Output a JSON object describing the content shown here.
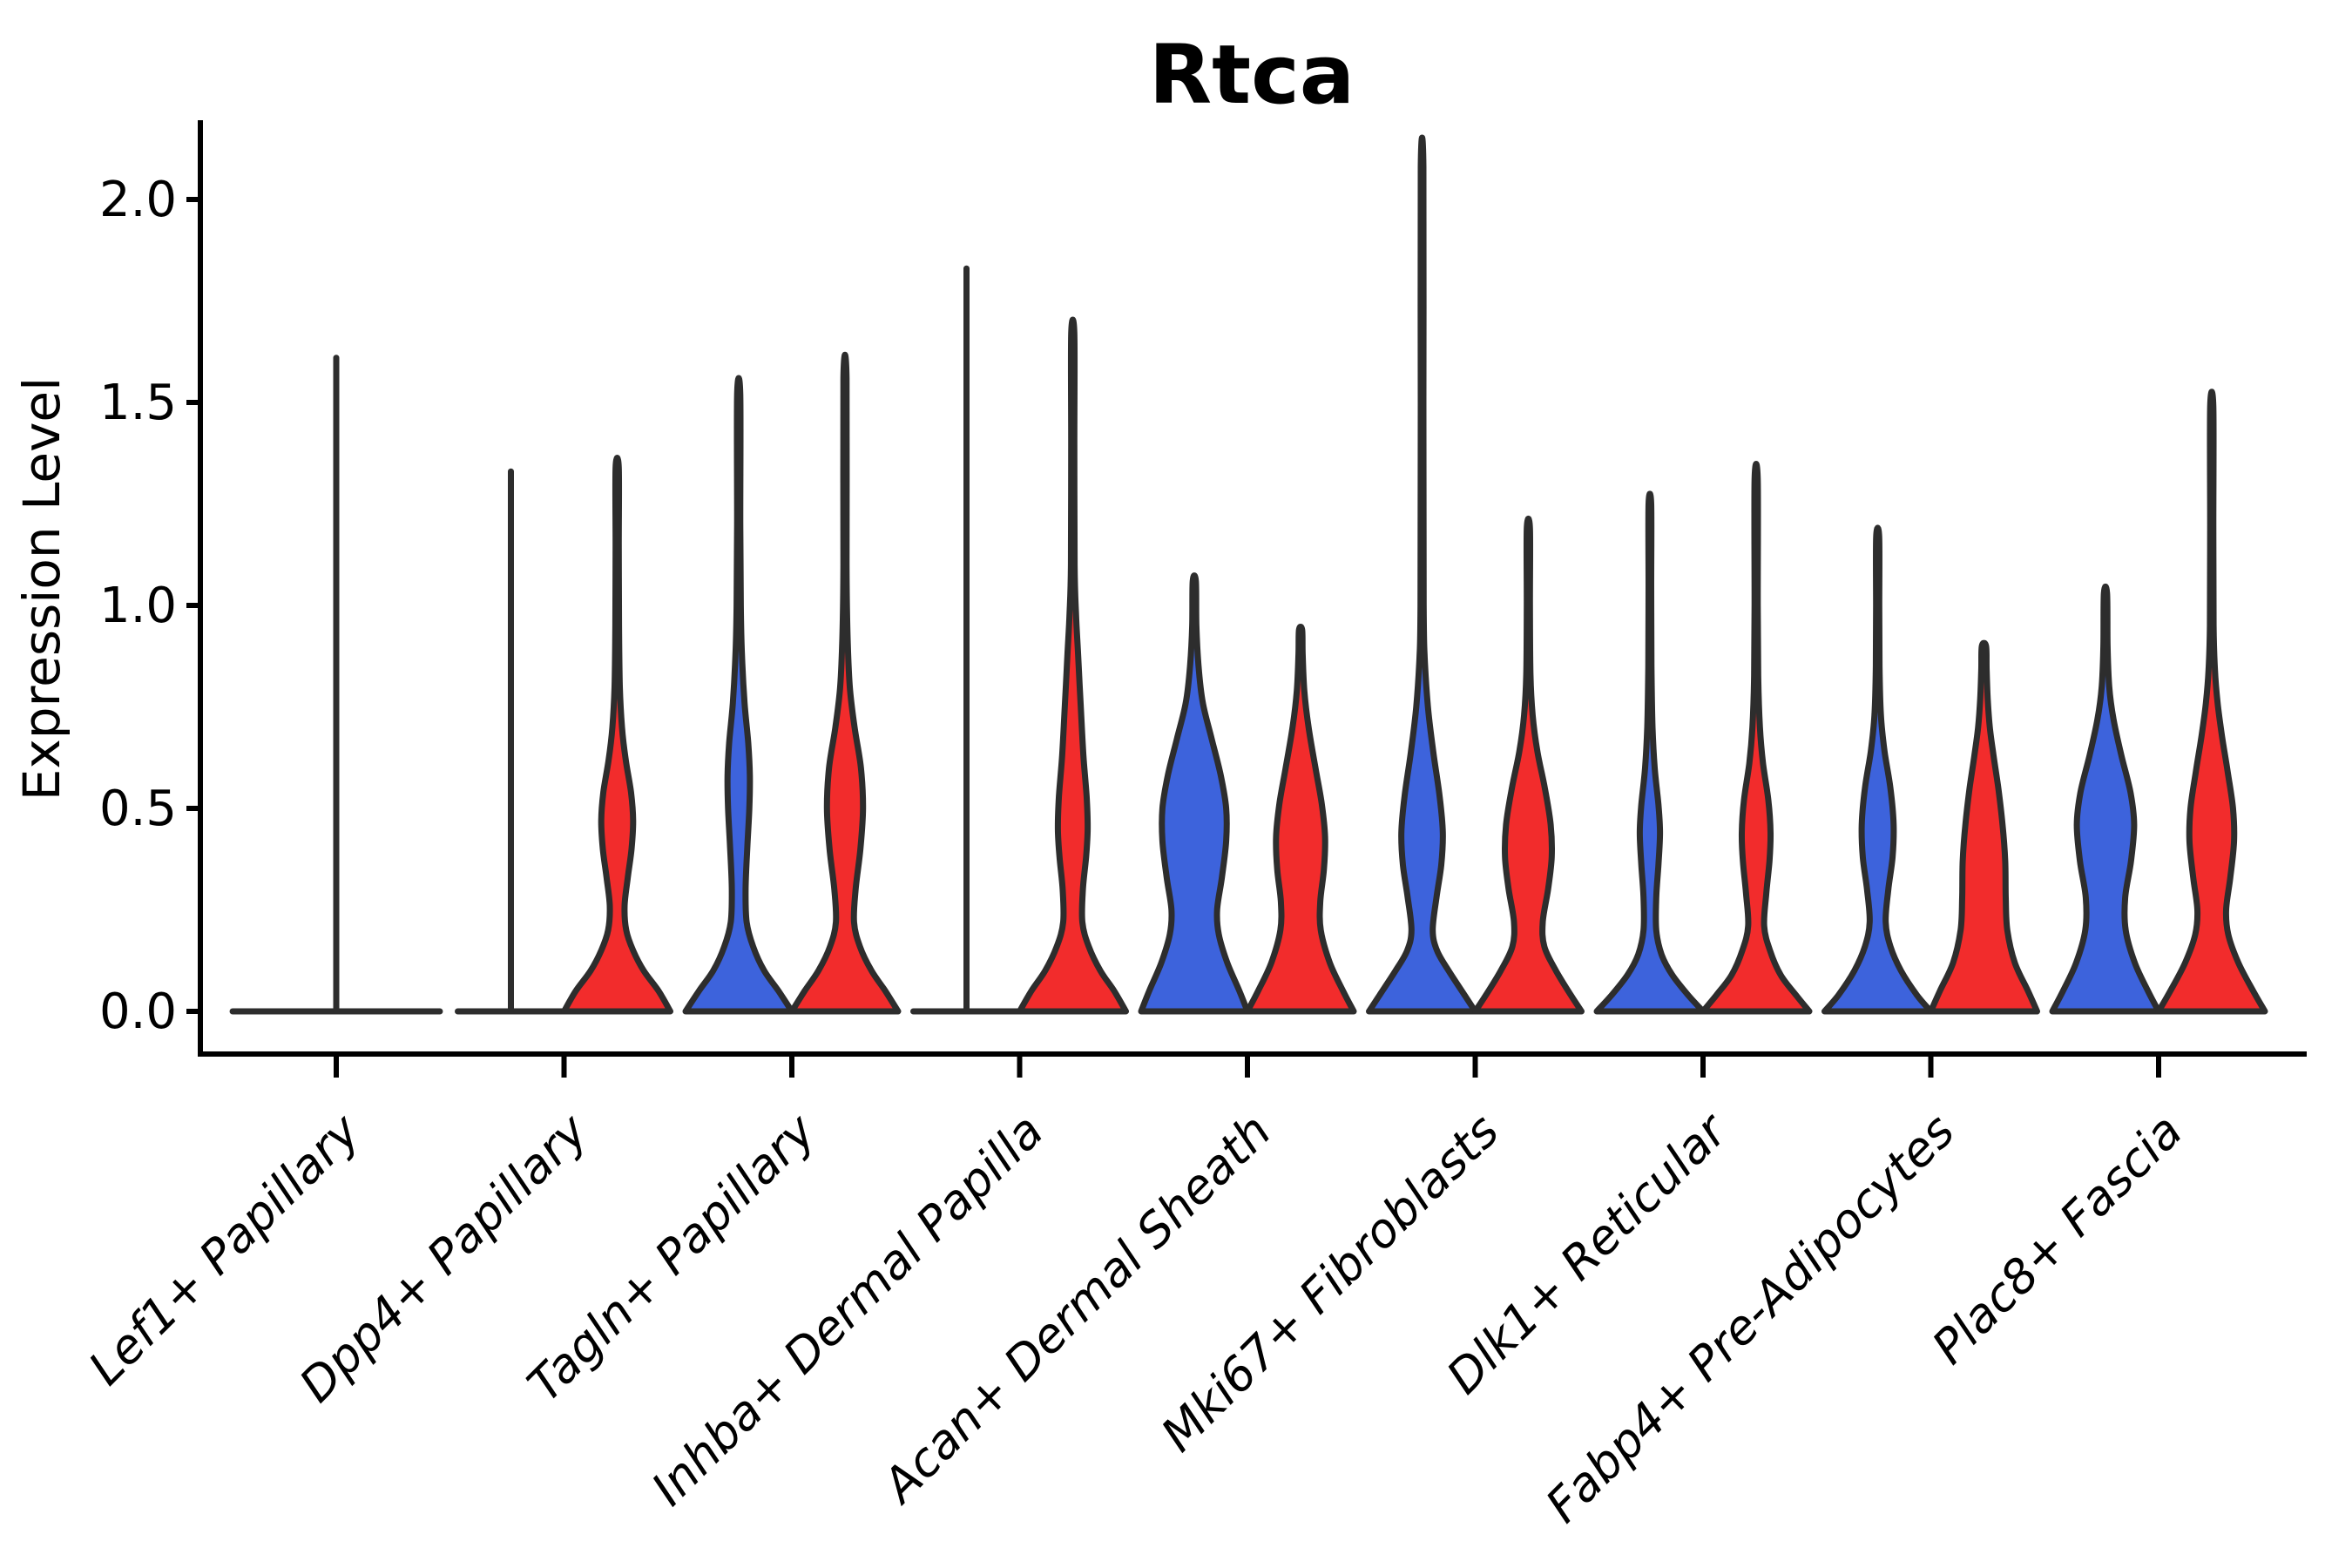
{
  "chart_data": {
    "type": "violin",
    "title": "Rtca",
    "ylabel": "Expression Level",
    "xlabel": "",
    "ylim": [
      0,
      2.0
    ],
    "grid": false,
    "legend": "none",
    "y_ticks": [
      {
        "label": "0.0",
        "value": 0.0
      },
      {
        "label": "0.5",
        "value": 0.5
      },
      {
        "label": "1.0",
        "value": 1.0
      },
      {
        "label": "1.5",
        "value": 1.5
      },
      {
        "label": "2.0",
        "value": 2.0
      }
    ],
    "categories": [
      "Lef1+ Papillary",
      "Dpp4+ Papillary",
      "Tagln+ Papillary",
      "Inhba+ Dermal Papilla",
      "Acan+ Dermal Sheath",
      "Mki67+ Fibroblasts",
      "Dlk1+ Reticular",
      "Fabp4+ Pre-Adipocytes",
      "Plac8+ Fascia"
    ],
    "series_colors": {
      "blue": "#3D63DC",
      "red": "#F22C2C"
    },
    "outline_color": "#2D2D2D",
    "groups": [
      {
        "category": "Lef1+ Papillary",
        "violins": [
          {
            "split": "single",
            "flat": true,
            "width_scale": 1.95,
            "max_expression": 1.61,
            "mode": 0.0
          }
        ]
      },
      {
        "category": "Dpp4+ Papillary",
        "violins": [
          {
            "split": "blue",
            "flat": true,
            "width_scale": 1.0,
            "max_expression": 1.33,
            "mode": 0.0
          },
          {
            "split": "red",
            "flat": false,
            "max_expression": 1.34,
            "mode": 0.0,
            "profile": [
              [
                0,
                1.0
              ],
              [
                0.05,
                0.78
              ],
              [
                0.1,
                0.5
              ],
              [
                0.15,
                0.3
              ],
              [
                0.2,
                0.17
              ],
              [
                0.26,
                0.14
              ],
              [
                0.33,
                0.2
              ],
              [
                0.4,
                0.27
              ],
              [
                0.47,
                0.3
              ],
              [
                0.54,
                0.26
              ],
              [
                0.62,
                0.16
              ],
              [
                0.7,
                0.09
              ],
              [
                0.8,
                0.05
              ],
              [
                0.95,
                0.035
              ],
              [
                1.15,
                0.03
              ],
              [
                1.34,
                0.03
              ]
            ]
          }
        ]
      },
      {
        "category": "Tagln+ Papillary",
        "violins": [
          {
            "split": "blue",
            "flat": false,
            "max_expression": 1.52,
            "mode": 0.0,
            "profile": [
              [
                0,
                1.0
              ],
              [
                0.05,
                0.75
              ],
              [
                0.1,
                0.48
              ],
              [
                0.16,
                0.27
              ],
              [
                0.22,
                0.15
              ],
              [
                0.3,
                0.13
              ],
              [
                0.4,
                0.16
              ],
              [
                0.5,
                0.2
              ],
              [
                0.58,
                0.21
              ],
              [
                0.66,
                0.18
              ],
              [
                0.76,
                0.11
              ],
              [
                0.88,
                0.06
              ],
              [
                1.0,
                0.04
              ],
              [
                1.2,
                0.03
              ],
              [
                1.52,
                0.03
              ]
            ]
          },
          {
            "split": "red",
            "flat": false,
            "max_expression": 1.56,
            "mode": 0.0,
            "profile": [
              [
                0,
                1.0
              ],
              [
                0.05,
                0.76
              ],
              [
                0.1,
                0.5
              ],
              [
                0.16,
                0.28
              ],
              [
                0.22,
                0.17
              ],
              [
                0.3,
                0.2
              ],
              [
                0.4,
                0.29
              ],
              [
                0.5,
                0.34
              ],
              [
                0.6,
                0.3
              ],
              [
                0.7,
                0.18
              ],
              [
                0.8,
                0.09
              ],
              [
                0.92,
                0.05
              ],
              [
                1.1,
                0.03
              ],
              [
                1.56,
                0.03
              ]
            ]
          }
        ]
      },
      {
        "category": "Inhba+ Dermal Papilla",
        "violins": [
          {
            "split": "blue",
            "flat": true,
            "width_scale": 1.0,
            "max_expression": 1.83,
            "mode": 0.0
          },
          {
            "split": "red",
            "flat": false,
            "max_expression": 1.67,
            "mode": 0.0,
            "profile": [
              [
                0,
                1.0
              ],
              [
                0.05,
                0.78
              ],
              [
                0.1,
                0.52
              ],
              [
                0.16,
                0.3
              ],
              [
                0.22,
                0.18
              ],
              [
                0.3,
                0.19
              ],
              [
                0.38,
                0.25
              ],
              [
                0.45,
                0.28
              ],
              [
                0.53,
                0.26
              ],
              [
                0.63,
                0.2
              ],
              [
                0.75,
                0.15
              ],
              [
                0.88,
                0.1
              ],
              [
                0.98,
                0.06
              ],
              [
                1.1,
                0.035
              ],
              [
                1.4,
                0.03
              ],
              [
                1.67,
                0.03
              ]
            ]
          }
        ]
      },
      {
        "category": "Acan+ Dermal Sheath",
        "violins": [
          {
            "split": "blue",
            "flat": false,
            "max_expression": 1.06,
            "mode": 0.0,
            "profile": [
              [
                0,
                1.0
              ],
              [
                0.05,
                0.85
              ],
              [
                0.12,
                0.62
              ],
              [
                0.19,
                0.46
              ],
              [
                0.25,
                0.43
              ],
              [
                0.33,
                0.52
              ],
              [
                0.42,
                0.6
              ],
              [
                0.5,
                0.6
              ],
              [
                0.58,
                0.5
              ],
              [
                0.67,
                0.33
              ],
              [
                0.76,
                0.16
              ],
              [
                0.85,
                0.08
              ],
              [
                0.95,
                0.04
              ],
              [
                1.06,
                0.03
              ]
            ]
          },
          {
            "split": "red",
            "flat": false,
            "max_expression": 0.94,
            "mode": 0.0,
            "profile": [
              [
                0,
                1.0
              ],
              [
                0.05,
                0.8
              ],
              [
                0.12,
                0.55
              ],
              [
                0.2,
                0.38
              ],
              [
                0.27,
                0.37
              ],
              [
                0.35,
                0.44
              ],
              [
                0.43,
                0.46
              ],
              [
                0.51,
                0.4
              ],
              [
                0.6,
                0.28
              ],
              [
                0.7,
                0.15
              ],
              [
                0.79,
                0.07
              ],
              [
                0.88,
                0.04
              ],
              [
                0.94,
                0.03
              ]
            ]
          }
        ]
      },
      {
        "category": "Mki67+ Fibroblasts",
        "violins": [
          {
            "split": "blue",
            "flat": false,
            "max_expression": 2.08,
            "mode": 0.0,
            "profile": [
              [
                0,
                1.0
              ],
              [
                0.04,
                0.8
              ],
              [
                0.1,
                0.5
              ],
              [
                0.15,
                0.28
              ],
              [
                0.2,
                0.2
              ],
              [
                0.28,
                0.27
              ],
              [
                0.36,
                0.36
              ],
              [
                0.44,
                0.39
              ],
              [
                0.53,
                0.33
              ],
              [
                0.64,
                0.21
              ],
              [
                0.75,
                0.11
              ],
              [
                0.87,
                0.05
              ],
              [
                1.0,
                0.03
              ],
              [
                1.5,
                0.025
              ],
              [
                2.08,
                0.025
              ]
            ]
          },
          {
            "split": "red",
            "flat": false,
            "max_expression": 1.19,
            "mode": 0.0,
            "profile": [
              [
                0,
                1.0
              ],
              [
                0.04,
                0.8
              ],
              [
                0.1,
                0.52
              ],
              [
                0.16,
                0.3
              ],
              [
                0.22,
                0.27
              ],
              [
                0.3,
                0.37
              ],
              [
                0.38,
                0.44
              ],
              [
                0.46,
                0.42
              ],
              [
                0.55,
                0.31
              ],
              [
                0.64,
                0.17
              ],
              [
                0.73,
                0.08
              ],
              [
                0.83,
                0.04
              ],
              [
                1.0,
                0.03
              ],
              [
                1.19,
                0.03
              ]
            ]
          }
        ]
      },
      {
        "category": "Dlk1+ Reticular",
        "violins": [
          {
            "split": "blue",
            "flat": false,
            "max_expression": 1.25,
            "mode": 0.0,
            "profile": [
              [
                0,
                1.0
              ],
              [
                0.04,
                0.72
              ],
              [
                0.09,
                0.42
              ],
              [
                0.14,
                0.22
              ],
              [
                0.2,
                0.12
              ],
              [
                0.28,
                0.12
              ],
              [
                0.36,
                0.16
              ],
              [
                0.44,
                0.19
              ],
              [
                0.51,
                0.16
              ],
              [
                0.6,
                0.09
              ],
              [
                0.7,
                0.05
              ],
              [
                0.85,
                0.03
              ],
              [
                1.05,
                0.025
              ],
              [
                1.25,
                0.025
              ]
            ]
          },
          {
            "split": "red",
            "flat": false,
            "max_expression": 1.31,
            "mode": 0.0,
            "profile": [
              [
                0,
                1.0
              ],
              [
                0.04,
                0.75
              ],
              [
                0.09,
                0.46
              ],
              [
                0.15,
                0.26
              ],
              [
                0.21,
                0.15
              ],
              [
                0.29,
                0.19
              ],
              [
                0.37,
                0.25
              ],
              [
                0.44,
                0.27
              ],
              [
                0.52,
                0.23
              ],
              [
                0.61,
                0.13
              ],
              [
                0.7,
                0.07
              ],
              [
                0.82,
                0.04
              ],
              [
                1.0,
                0.03
              ],
              [
                1.31,
                0.03
              ]
            ]
          }
        ]
      },
      {
        "category": "Fabp4+ Pre-Adipocytes",
        "violins": [
          {
            "split": "blue",
            "flat": false,
            "max_expression": 1.17,
            "mode": 0.0,
            "profile": [
              [
                0,
                1.0
              ],
              [
                0.04,
                0.74
              ],
              [
                0.1,
                0.44
              ],
              [
                0.16,
                0.24
              ],
              [
                0.22,
                0.15
              ],
              [
                0.3,
                0.2
              ],
              [
                0.38,
                0.28
              ],
              [
                0.46,
                0.3
              ],
              [
                0.55,
                0.24
              ],
              [
                0.64,
                0.13
              ],
              [
                0.73,
                0.06
              ],
              [
                0.85,
                0.035
              ],
              [
                1.0,
                0.03
              ],
              [
                1.17,
                0.028
              ]
            ]
          },
          {
            "split": "red",
            "flat": false,
            "max_expression": 0.9,
            "mode": 0.0,
            "profile": [
              [
                0,
                1.0
              ],
              [
                0.05,
                0.83
              ],
              [
                0.12,
                0.58
              ],
              [
                0.2,
                0.44
              ],
              [
                0.28,
                0.41
              ],
              [
                0.37,
                0.4
              ],
              [
                0.46,
                0.35
              ],
              [
                0.55,
                0.27
              ],
              [
                0.63,
                0.18
              ],
              [
                0.7,
                0.11
              ],
              [
                0.77,
                0.07
              ],
              [
                0.84,
                0.05
              ],
              [
                0.9,
                0.04
              ]
            ]
          }
        ]
      },
      {
        "category": "Plac8+ Fascia",
        "violins": [
          {
            "split": "blue",
            "flat": false,
            "max_expression": 1.03,
            "mode": 0.0,
            "profile": [
              [
                0,
                1.0
              ],
              [
                0.05,
                0.8
              ],
              [
                0.12,
                0.55
              ],
              [
                0.2,
                0.38
              ],
              [
                0.28,
                0.37
              ],
              [
                0.37,
                0.48
              ],
              [
                0.46,
                0.54
              ],
              [
                0.54,
                0.47
              ],
              [
                0.63,
                0.3
              ],
              [
                0.72,
                0.15
              ],
              [
                0.8,
                0.07
              ],
              [
                0.9,
                0.04
              ],
              [
                1.03,
                0.03
              ]
            ]
          },
          {
            "split": "red",
            "flat": false,
            "max_expression": 1.49,
            "mode": 0.0,
            "profile": [
              [
                0,
                1.0
              ],
              [
                0.05,
                0.78
              ],
              [
                0.12,
                0.5
              ],
              [
                0.19,
                0.31
              ],
              [
                0.25,
                0.27
              ],
              [
                0.33,
                0.35
              ],
              [
                0.42,
                0.42
              ],
              [
                0.5,
                0.4
              ],
              [
                0.59,
                0.3
              ],
              [
                0.68,
                0.19
              ],
              [
                0.76,
                0.11
              ],
              [
                0.84,
                0.06
              ],
              [
                0.95,
                0.035
              ],
              [
                1.2,
                0.03
              ],
              [
                1.49,
                0.03
              ]
            ]
          }
        ]
      }
    ]
  }
}
